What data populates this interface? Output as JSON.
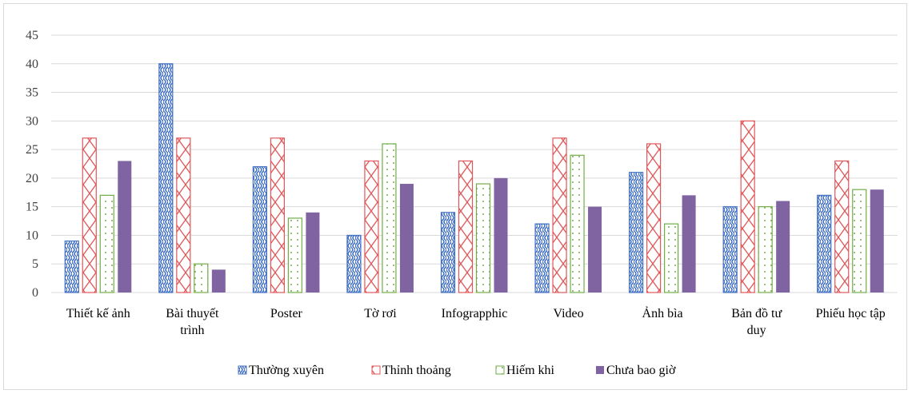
{
  "chart_data": {
    "type": "bar",
    "categories": [
      [
        "Thiết kế ảnh"
      ],
      [
        "Bài thuyết",
        "trình"
      ],
      [
        "Poster"
      ],
      [
        "Tờ rơi"
      ],
      [
        "Infograpphic"
      ],
      [
        "Video"
      ],
      [
        "Ảnh bìa"
      ],
      [
        "Bản đồ tư",
        "duy"
      ],
      [
        "Phiếu học tập"
      ]
    ],
    "series": [
      {
        "name": "Thường xuyên",
        "pattern": "wave",
        "color": "#4472c4",
        "values": [
          9,
          40,
          22,
          10,
          14,
          12,
          21,
          15,
          17
        ]
      },
      {
        "name": "Thỉnh thoảng",
        "pattern": "cross",
        "color": "#e15759",
        "values": [
          27,
          27,
          27,
          23,
          23,
          27,
          26,
          30,
          23
        ]
      },
      {
        "name": "Hiếm khi",
        "pattern": "dots",
        "color": "#70ad47",
        "values": [
          17,
          5,
          13,
          26,
          19,
          24,
          12,
          15,
          18
        ]
      },
      {
        "name": "Chưa bao giờ",
        "pattern": "solid",
        "color": "#8064a2",
        "values": [
          23,
          4,
          14,
          19,
          20,
          15,
          17,
          16,
          18
        ]
      }
    ],
    "ylim": [
      0,
      45
    ],
    "yticks": [
      0,
      5,
      10,
      15,
      20,
      25,
      30,
      35,
      40,
      45
    ],
    "grid": true,
    "legend": "bottom"
  }
}
